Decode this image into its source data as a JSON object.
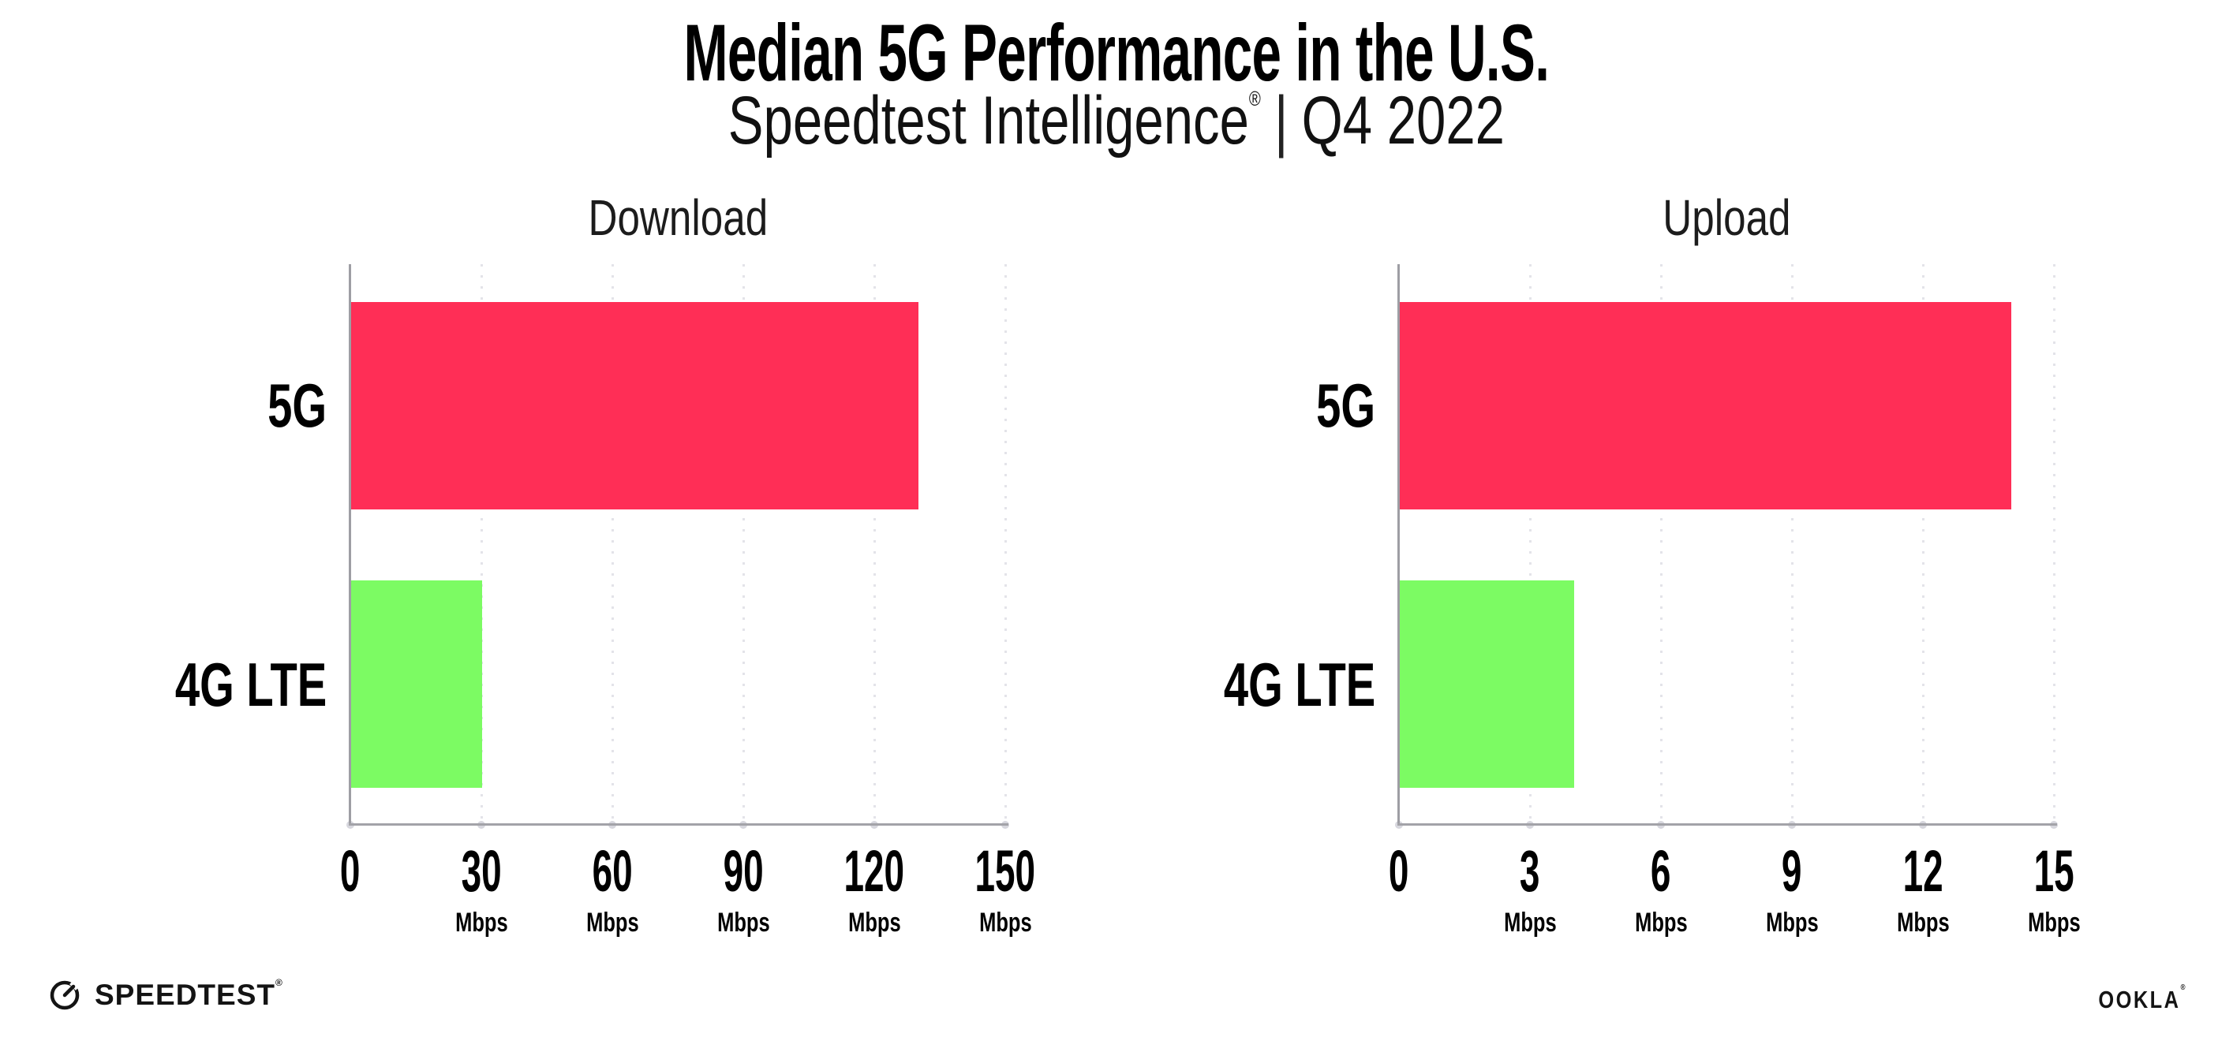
{
  "header": {
    "title": "Median 5G Performance in the U.S.",
    "subtitle_brand": "Speedtest Intelligence",
    "subtitle_reg": "®",
    "subtitle_sep": "|",
    "subtitle_period": "Q4 2022"
  },
  "footer": {
    "speedtest_label": "SPEEDTEST",
    "speedtest_reg": "®",
    "ookla_label": "OOKLA",
    "ookla_reg": "®"
  },
  "colors": {
    "bar_5g": "#FF2E56",
    "bar_4g_lte": "#7CFB63",
    "gridline": "#e3e3e9",
    "axis": "#a3a3a8",
    "text": "#000000"
  },
  "chart_data": [
    {
      "type": "bar",
      "orientation": "horizontal",
      "title": "Download",
      "categories": [
        "5G",
        "4G LTE"
      ],
      "values": [
        130,
        30
      ],
      "value_unit": "Mbps",
      "xlim": [
        0,
        150
      ],
      "xticks": [
        0,
        30,
        60,
        90,
        120,
        150
      ],
      "xtick_unit": "Mbps",
      "bar_colors": [
        "#FF2E56",
        "#7CFB63"
      ],
      "grid": "vertical-dotted",
      "legend": "none"
    },
    {
      "type": "bar",
      "orientation": "horizontal",
      "title": "Upload",
      "categories": [
        "5G",
        "4G LTE"
      ],
      "values": [
        14,
        4
      ],
      "value_unit": "Mbps",
      "xlim": [
        0,
        15
      ],
      "xticks": [
        0,
        3,
        6,
        9,
        12,
        15
      ],
      "xtick_unit": "Mbps",
      "bar_colors": [
        "#FF2E56",
        "#7CFB63"
      ],
      "grid": "vertical-dotted",
      "legend": "none"
    }
  ]
}
